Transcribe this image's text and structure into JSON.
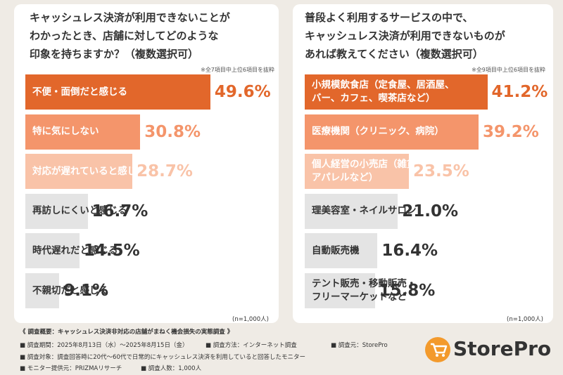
{
  "chart_data": [
    {
      "type": "bar",
      "title": "キャッシュレス決済が利用できないことが\nわかったとき、店舗に対してどのような\n印象を持ちますか？（複数選択可）",
      "note": "※全7項目中上位6項目を抜粋",
      "categories": [
        "不便・面倒だと感じる",
        "特に気にしない",
        "対応が遅れていると感じる",
        "再訪しにくいと感じる",
        "時代遅れだと感じる",
        "不親切だと感じる"
      ],
      "values": [
        49.6,
        30.8,
        28.7,
        16.7,
        14.5,
        9.1
      ],
      "value_labels": [
        "49.6%",
        "30.8%",
        "28.7%",
        "16.7%",
        "14.5%",
        "9.1%"
      ],
      "colors": [
        "#e2672b",
        "#f4956b",
        "#f9c3a8",
        "#e4e4e4",
        "#e4e4e4",
        "#e4e4e4"
      ],
      "sample_note": "(n=1,000人)"
    },
    {
      "type": "bar",
      "title": "普段よく利用するサービスの中で、\nキャッシュレス決済が利用できないものが\nあれば教えてください（複数選択可）",
      "note": "※全9項目中上位6項目を抜粋",
      "categories": [
        "小規模飲食店（定食屋、居酒屋、\nバー、カフェ、喫茶店など）",
        "医療機関（クリニック、病院）",
        "個人経営の小売店（雑貨店、\nアパレルなど）",
        "理美容室・ネイルサロン",
        "自動販売機",
        "テント販売・移動販売・\nフリーマーケットなど"
      ],
      "values": [
        41.2,
        39.2,
        23.5,
        21.0,
        16.4,
        15.8
      ],
      "value_labels": [
        "41.2%",
        "39.2%",
        "23.5%",
        "21.0%",
        "16.4%",
        "15.8%"
      ],
      "colors": [
        "#e2672b",
        "#f4956b",
        "#f9c3a8",
        "#e4e4e4",
        "#e4e4e4",
        "#e4e4e4"
      ],
      "sample_note": "(n=1,000人)"
    }
  ],
  "footer": {
    "heading": "《 調査概要：キャッシュレス決済非対応の店舗がまねく機会損失の実態調査 》",
    "lines": [
      [
        "■ 調査期間：2025年8月13日（水）～2025年8月15日（金）",
        "■ 調査方法：インターネット調査",
        "■ 調査元：StorePro"
      ],
      [
        "■ 調査対象：調査回答時に20代～60代で日常的にキャッシュレス決済を利用していると回答したモニター"
      ],
      [
        "■ モニター提供元：PRIZMAリサーチ",
        "■ 調査人数：1,000人"
      ]
    ]
  },
  "logo": "StorePro"
}
